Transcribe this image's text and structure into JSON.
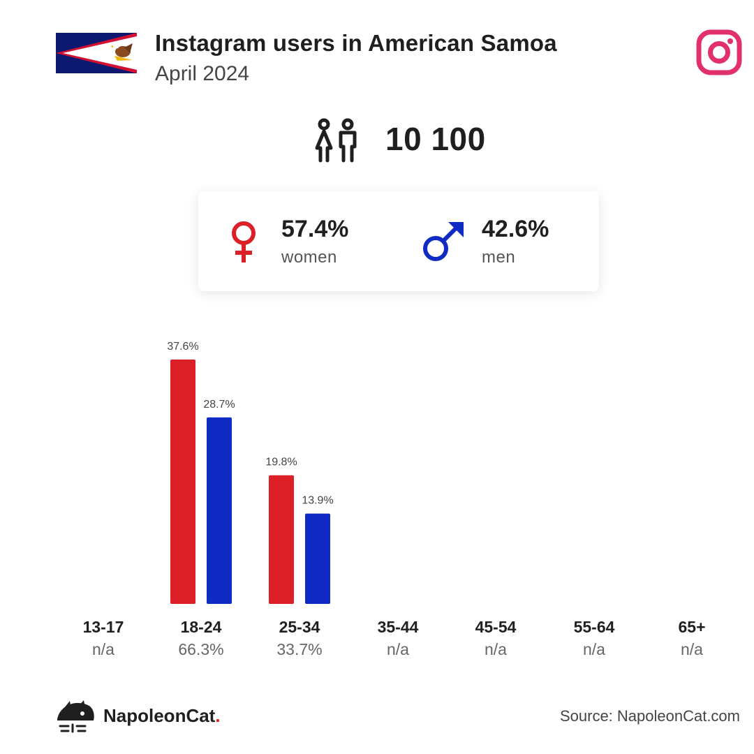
{
  "header": {
    "title": "Instagram users in American Samoa",
    "subtitle": "April 2024"
  },
  "total": {
    "value": "10 100"
  },
  "gender": {
    "women_value": "57.4%",
    "women_label": "women",
    "men_value": "42.6%",
    "men_label": "men"
  },
  "colors": {
    "women": "#dc2027",
    "men": "#0f2bc4",
    "instagram": "#e1306c"
  },
  "icons": {
    "flag": "american-samoa-flag",
    "instagram": "instagram-icon",
    "users": "users-icon",
    "female": "female-symbol-icon",
    "male": "male-symbol-icon",
    "brand": "napoleoncat-logo-icon"
  },
  "chart_data": {
    "type": "bar",
    "categories": [
      "13-17",
      "18-24",
      "25-34",
      "35-44",
      "45-54",
      "55-64",
      "65+"
    ],
    "category_totals": [
      "n/a",
      "66.3%",
      "33.7%",
      "n/a",
      "n/a",
      "n/a",
      "n/a"
    ],
    "series": [
      {
        "name": "women",
        "values": [
          null,
          37.6,
          19.8,
          null,
          null,
          null,
          null
        ],
        "labels": [
          "",
          "37.6%",
          "19.8%",
          "",
          "",
          "",
          ""
        ]
      },
      {
        "name": "men",
        "values": [
          null,
          28.7,
          13.9,
          null,
          null,
          null,
          null
        ],
        "labels": [
          "",
          "28.7%",
          "13.9%",
          "",
          "",
          "",
          ""
        ]
      }
    ]
  },
  "footer": {
    "brand_name": "NapoleonCat",
    "brand_dot": ".",
    "source": "Source: NapoleonCat.com"
  }
}
